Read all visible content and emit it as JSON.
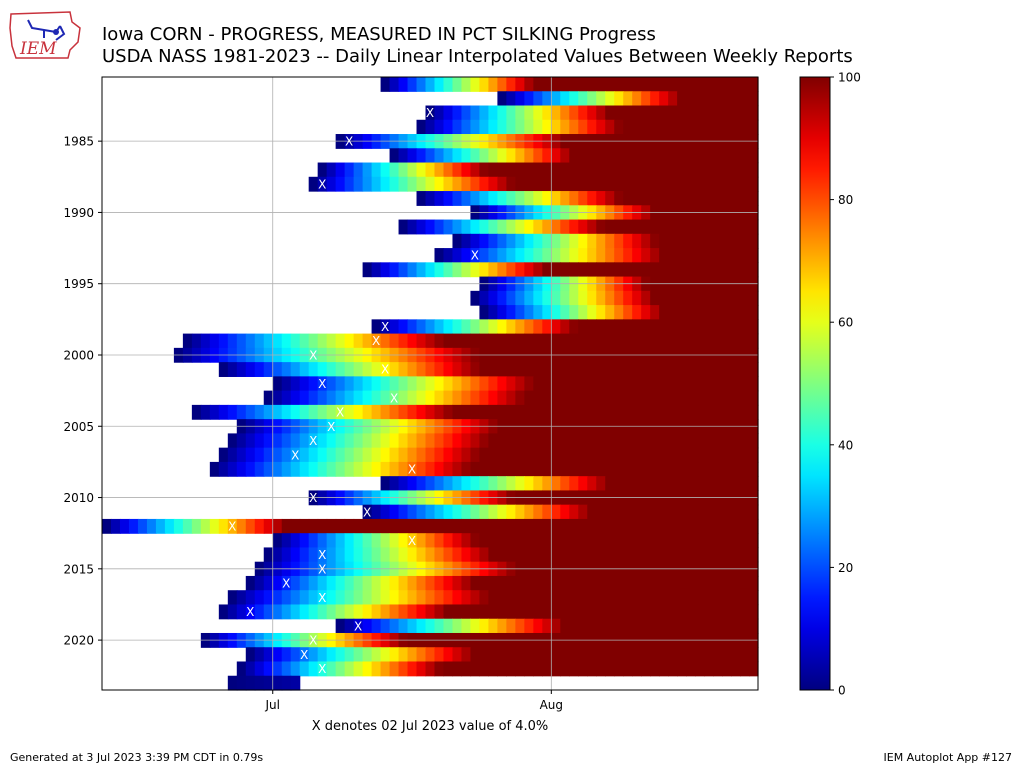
{
  "header": {
    "title": "Iowa CORN - PROGRESS, MEASURED IN PCT SILKING Progress",
    "subtitle": "USDA NASS 1981-2023 -- Daily Linear Interpolated Values Between Weekly Reports",
    "logo_text": "IEM"
  },
  "footer": {
    "generated": "Generated at 3 Jul 2023 3:39 PM CDT in 0.79s",
    "app": "IEM Autoplot App #127"
  },
  "colors": {
    "x_marker": "#ffffff",
    "grid": "#b0b0b0",
    "logo_red": "#c8323c",
    "logo_blue": "#1e28b4"
  },
  "chart_data": {
    "type": "heatmap",
    "title": "Iowa CORN - PROGRESS, MEASURED IN PCT SILKING Progress",
    "subtitle": "USDA NASS 1981-2023 -- Daily Linear Interpolated Values Between Weekly Reports",
    "xlabel": "X denotes 02 Jul 2023 value of 4.0%",
    "colormap": "jet",
    "colorbar": {
      "min": 0,
      "max": 100,
      "ticks": [
        0,
        20,
        40,
        60,
        80,
        100
      ]
    },
    "x_domain": [
      "Jun 12",
      "Aug 24"
    ],
    "xticks": [
      {
        "label": "Jul",
        "day": 19
      },
      {
        "label": "Aug",
        "day": 50
      }
    ],
    "y_range": [
      1981,
      2023
    ],
    "yticks": [
      1985,
      1990,
      1995,
      2000,
      2005,
      2010,
      2015,
      2020
    ],
    "grid": true,
    "x_axis_origin": "Jun 12 = day 0",
    "rows": [
      {
        "year": 1981,
        "start": 31,
        "rate": 6.0
      },
      {
        "year": 1982,
        "start": 44,
        "rate": 5.0
      },
      {
        "year": 1983,
        "start": 36,
        "rate": 5.0,
        "x_day": 36.5
      },
      {
        "year": 1984,
        "start": 35,
        "rate": 4.5
      },
      {
        "year": 1985,
        "start": 26,
        "rate": 4.0,
        "x_day": 27.5
      },
      {
        "year": 1986,
        "start": 32,
        "rate": 5.0
      },
      {
        "year": 1987,
        "start": 24,
        "rate": 5.5
      },
      {
        "year": 1988,
        "start": 23,
        "rate": 4.5,
        "x_day": 24.5
      },
      {
        "year": 1989,
        "start": 35,
        "rate": 4.5
      },
      {
        "year": 1990,
        "start": 41,
        "rate": 5.0
      },
      {
        "year": 1991,
        "start": 33,
        "rate": 4.5
      },
      {
        "year": 1992,
        "start": 39,
        "rate": 4.5
      },
      {
        "year": 1993,
        "start": 37,
        "rate": 4.0,
        "x_day": 41.5
      },
      {
        "year": 1994,
        "start": 29,
        "rate": 5.0
      },
      {
        "year": 1995,
        "start": 42,
        "rate": 5.5
      },
      {
        "year": 1996,
        "start": 41,
        "rate": 5.0
      },
      {
        "year": 1997,
        "start": 42,
        "rate": 5.0
      },
      {
        "year": 1998,
        "start": 30,
        "rate": 4.5,
        "x_day": 31.5
      },
      {
        "year": 1999,
        "start": 9,
        "rate": 3.5,
        "x_day": 30.5
      },
      {
        "year": 2000,
        "start": 8,
        "rate": 3.0,
        "x_day": 23.5
      },
      {
        "year": 2001,
        "start": 13,
        "rate": 3.5,
        "x_day": 31.5
      },
      {
        "year": 2002,
        "start": 19,
        "rate": 3.5,
        "x_day": 24.5
      },
      {
        "year": 2003,
        "start": 18,
        "rate": 3.5,
        "x_day": 32.5
      },
      {
        "year": 2004,
        "start": 10,
        "rate": 3.5,
        "x_day": 26.5
      },
      {
        "year": 2005,
        "start": 15,
        "rate": 3.5,
        "x_day": 25.5
      },
      {
        "year": 2006,
        "start": 14,
        "rate": 3.5,
        "x_day": 23.5
      },
      {
        "year": 2007,
        "start": 13,
        "rate": 3.5,
        "x_day": 21.5
      },
      {
        "year": 2008,
        "start": 12,
        "rate": 3.5,
        "x_day": 34.5
      },
      {
        "year": 2009,
        "start": 31,
        "rate": 4.0
      },
      {
        "year": 2010,
        "start": 23,
        "rate": 4.5,
        "x_day": 23.5
      },
      {
        "year": 2011,
        "start": 29,
        "rate": 4.0,
        "x_day": 29.5
      },
      {
        "year": 2012,
        "start": 0,
        "rate": 5.0,
        "x_day": 14.5
      },
      {
        "year": 2013,
        "start": 19,
        "rate": 4.5,
        "x_day": 34.5
      },
      {
        "year": 2014,
        "start": 18,
        "rate": 4.0,
        "x_day": 24.5
      },
      {
        "year": 2015,
        "start": 17,
        "rate": 3.5,
        "x_day": 24.5
      },
      {
        "year": 2016,
        "start": 16,
        "rate": 4.0,
        "x_day": 20.5
      },
      {
        "year": 2017,
        "start": 14,
        "rate": 3.5,
        "x_day": 24.5
      },
      {
        "year": 2018,
        "start": 13,
        "rate": 4.0,
        "x_day": 16.5
      },
      {
        "year": 2019,
        "start": 26,
        "rate": 4.0,
        "x_day": 28.5
      },
      {
        "year": 2020,
        "start": 11,
        "rate": 4.5,
        "x_day": 23.5
      },
      {
        "year": 2021,
        "start": 16,
        "rate": 4.0,
        "x_day": 22.5
      },
      {
        "year": 2022,
        "start": 15,
        "rate": 4.5,
        "x_day": 24.5
      },
      {
        "year": 2023,
        "start": 14,
        "end": 22,
        "rate": 0.5
      }
    ]
  }
}
